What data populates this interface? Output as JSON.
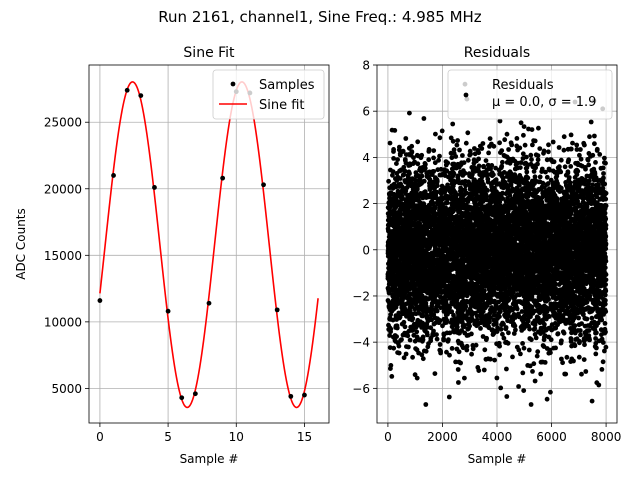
{
  "suptitle": "Run 2161, channel1, Sine Freq.: 4.985 MHz",
  "colors": {
    "fit": "#ff0000",
    "points": "#000000",
    "grid": "#b0b0b0"
  },
  "chart_data": [
    {
      "type": "scatter",
      "title": "Sine Fit",
      "xlabel": "Sample #",
      "ylabel": "ADC Counts",
      "xlim": [
        -0.8,
        16.8
      ],
      "ylim": [
        2400,
        29300
      ],
      "xticks": [
        0,
        5,
        10,
        15
      ],
      "yticks": [
        5000,
        10000,
        15000,
        20000,
        25000
      ],
      "grid": true,
      "legend": {
        "position": "top-right",
        "entries": [
          "Samples",
          "Sine fit"
        ]
      },
      "series": [
        {
          "name": "Samples",
          "style": "markers",
          "x": [
            0,
            1,
            2,
            3,
            4,
            5,
            6,
            7,
            8,
            9,
            10,
            11,
            12,
            13,
            14,
            15
          ],
          "y": [
            11600,
            21000,
            27400,
            27000,
            20100,
            10800,
            4300,
            4600,
            11400,
            20800,
            27300,
            27200,
            20300,
            10900,
            4400,
            4500
          ]
        },
        {
          "name": "Sine fit",
          "style": "line",
          "model": {
            "amplitude": 12230,
            "offset": 15800,
            "samples_per_cycle": 8.02,
            "phase_rad": -0.304
          },
          "x_range": [
            0,
            16
          ]
        }
      ]
    },
    {
      "type": "scatter",
      "title": "Residuals",
      "xlabel": "Sample #",
      "ylabel": "",
      "xlim": [
        -400,
        8400
      ],
      "ylim": [
        -7.5,
        8
      ],
      "xticks": [
        0,
        2000,
        4000,
        6000,
        8000
      ],
      "yticks": [
        -6,
        -4,
        -2,
        0,
        2,
        4,
        6,
        8
      ],
      "grid": true,
      "legend": {
        "position": "top-right",
        "entries": [
          "Residuals",
          "μ = 0.0, σ = 1.9"
        ]
      },
      "series": [
        {
          "name": "Residuals",
          "style": "markers",
          "count": 8000,
          "mean": 0.0,
          "std": 1.9,
          "x_range": [
            0,
            8000
          ]
        }
      ]
    }
  ]
}
